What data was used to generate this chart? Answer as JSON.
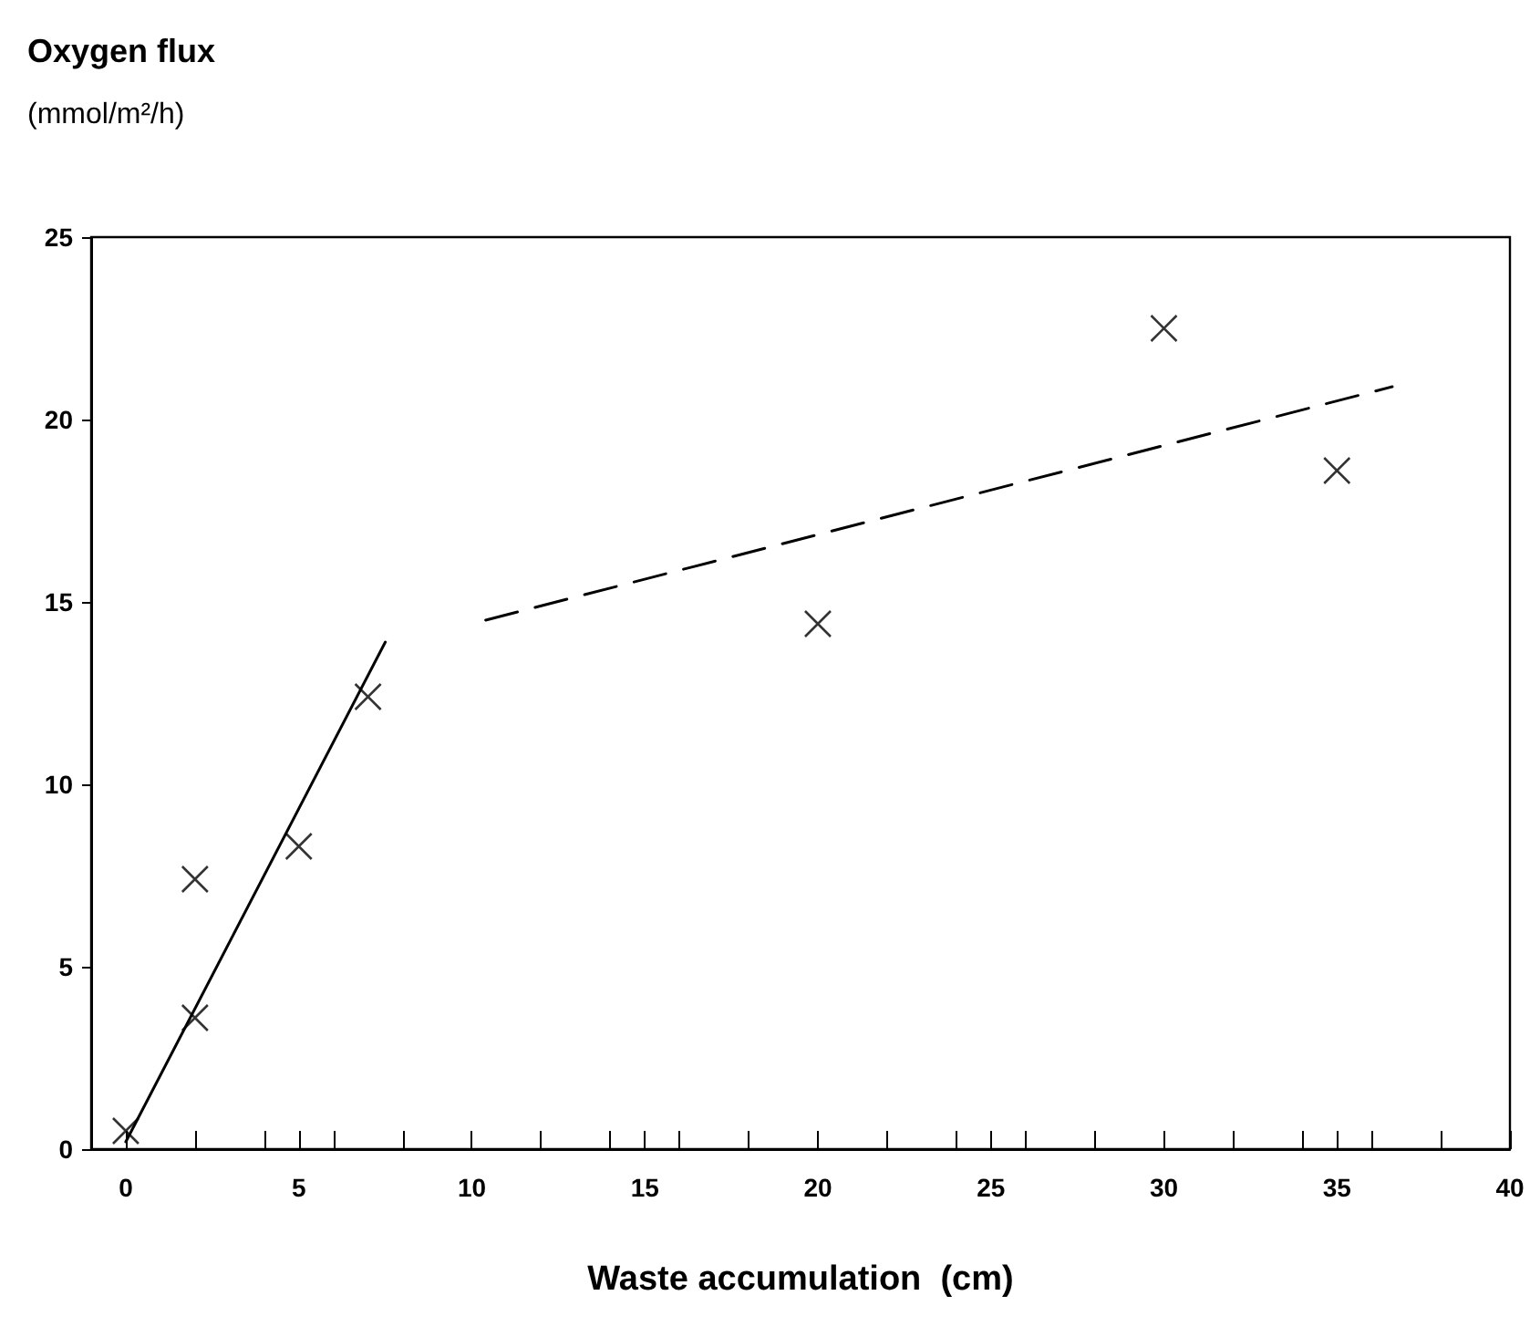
{
  "chart_data": {
    "type": "scatter",
    "title": "Oxygen flux",
    "ylabel": "(mmol/m²/h)",
    "xlabel": "Waste accumulation  (cm)",
    "xlim": [
      -1,
      40
    ],
    "xticks": [
      0,
      5,
      10,
      15,
      20,
      25,
      30,
      35,
      40
    ],
    "ylim": [
      0,
      25
    ],
    "yticks": [
      0,
      5,
      10,
      15,
      20,
      25
    ],
    "grid": false,
    "marker": "cross",
    "series": [
      {
        "color": "#000000",
        "x": [
          0,
          2,
          2,
          5,
          7,
          20,
          30,
          35
        ],
        "values": [
          0.5,
          7.4,
          3.6,
          8.3,
          12.4,
          14.4,
          22.5,
          18.6
        ]
      },
      {
        "type": "line",
        "color": "#000000",
        "line_style": "solid",
        "marker": "none",
        "x": [
          0,
          7.5
        ],
        "values": [
          0.2,
          13.9
        ]
      },
      {
        "type": "line",
        "color": "#000000",
        "line_style": "dashed",
        "marker": "none",
        "x": [
          10.4,
          36.6
        ],
        "values": [
          14.5,
          20.9
        ]
      }
    ]
  }
}
